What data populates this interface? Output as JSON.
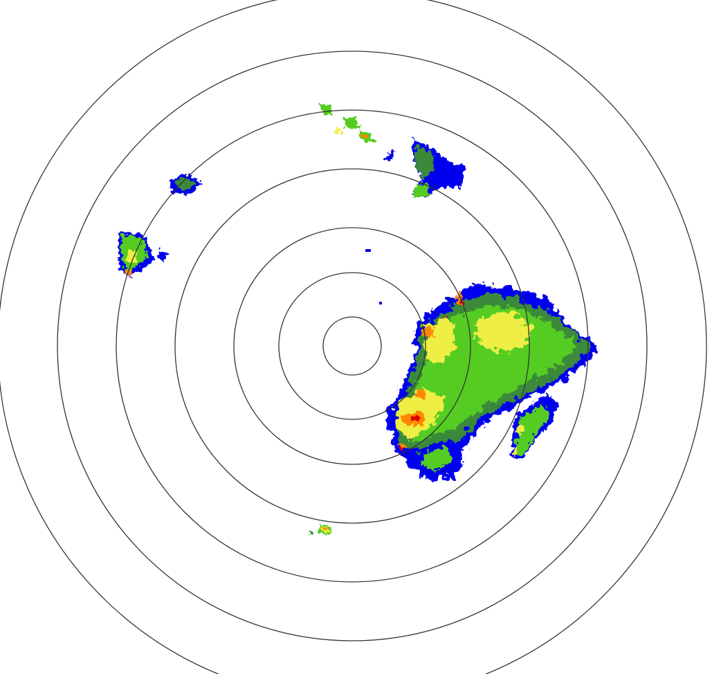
{
  "radar": {
    "ring_count": 7,
    "colors": {
      "ring": "#333333",
      "background": "#ffffff",
      "very_light": "#0000ee",
      "light": "#3a8a3a",
      "moderate": "#55cc22",
      "moderate_high": "#eeee44",
      "heavy": "#ff8800",
      "very_heavy": "#dd0000",
      "trace": "#22ddff"
    }
  }
}
